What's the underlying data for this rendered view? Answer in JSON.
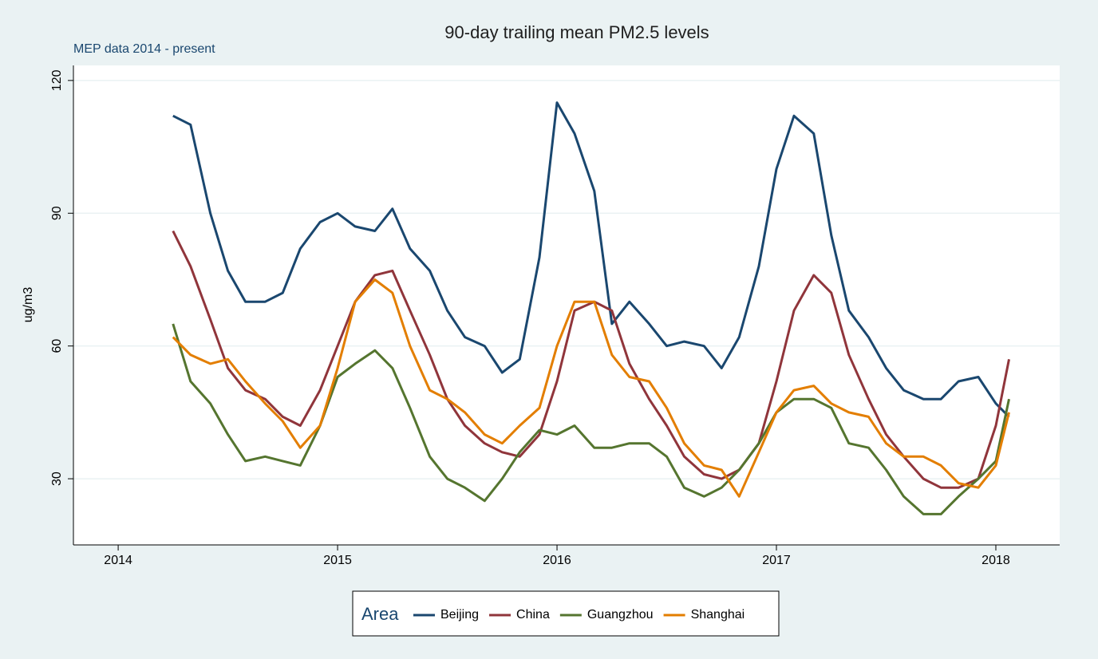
{
  "chart_data": {
    "type": "line",
    "title": "90-day trailing mean PM2.5 levels",
    "subtitle": "MEP data 2014 - present",
    "y_label": "ug/m3",
    "legend_title": "Area",
    "legend_position": "bottom",
    "grid": true,
    "x": [
      2014.25,
      2014.33,
      2014.42,
      2014.5,
      2014.58,
      2014.67,
      2014.75,
      2014.83,
      2014.92,
      2015,
      2015.08,
      2015.17,
      2015.25,
      2015.33,
      2015.42,
      2015.5,
      2015.58,
      2015.67,
      2015.75,
      2015.83,
      2015.92,
      2016,
      2016.08,
      2016.17,
      2016.25,
      2016.33,
      2016.42,
      2016.5,
      2016.58,
      2016.67,
      2016.75,
      2016.83,
      2016.92,
      2017,
      2017.08,
      2017.17,
      2017.25,
      2017.33,
      2017.42,
      2017.5,
      2017.58,
      2017.67,
      2017.75,
      2017.83,
      2017.92,
      2018,
      2018.06
    ],
    "series": [
      {
        "name": "Beijing",
        "color": "#1a476f",
        "values": [
          112,
          110,
          90,
          77,
          70,
          70,
          72,
          82,
          88,
          90,
          87,
          86,
          91,
          82,
          77,
          68,
          62,
          60,
          54,
          57,
          80,
          115,
          108,
          95,
          65,
          70,
          65,
          60,
          61,
          60,
          55,
          62,
          78,
          100,
          112,
          108,
          85,
          68,
          62,
          55,
          50,
          48,
          48,
          52,
          53,
          47,
          44
        ]
      },
      {
        "name": "China",
        "color": "#90353b",
        "values": [
          86,
          78,
          66,
          55,
          50,
          48,
          44,
          42,
          50,
          60,
          70,
          76,
          77,
          68,
          58,
          48,
          42,
          38,
          36,
          35,
          40,
          52,
          68,
          70,
          68,
          56,
          48,
          42,
          35,
          31,
          30,
          32,
          38,
          52,
          68,
          76,
          72,
          58,
          48,
          40,
          35,
          30,
          28,
          28,
          30,
          42,
          57
        ]
      },
      {
        "name": "Guangzhou",
        "color": "#55752f",
        "values": [
          65,
          52,
          47,
          40,
          34,
          35,
          34,
          33,
          42,
          53,
          56,
          59,
          55,
          46,
          35,
          30,
          28,
          25,
          30,
          36,
          41,
          40,
          42,
          37,
          37,
          38,
          38,
          35,
          28,
          26,
          28,
          32,
          38,
          45,
          48,
          48,
          46,
          38,
          37,
          32,
          26,
          22,
          22,
          26,
          30,
          34,
          48
        ]
      },
      {
        "name": "Shanghai",
        "color": "#e37e00",
        "values": [
          62,
          58,
          56,
          57,
          52,
          47,
          43,
          37,
          42,
          55,
          70,
          75,
          72,
          60,
          50,
          48,
          45,
          40,
          38,
          42,
          46,
          60,
          70,
          70,
          58,
          53,
          52,
          46,
          38,
          33,
          32,
          26,
          36,
          45,
          50,
          51,
          47,
          45,
          44,
          38,
          35,
          35,
          33,
          29,
          28,
          33,
          45
        ]
      }
    ],
    "xlim": [
      2013.796,
      2018.291
    ],
    "xticks": [
      2014,
      2015,
      2016,
      2017,
      2018
    ],
    "ylim": [
      15.05,
      123.4
    ],
    "yticks": [
      30,
      60,
      90,
      120
    ]
  }
}
